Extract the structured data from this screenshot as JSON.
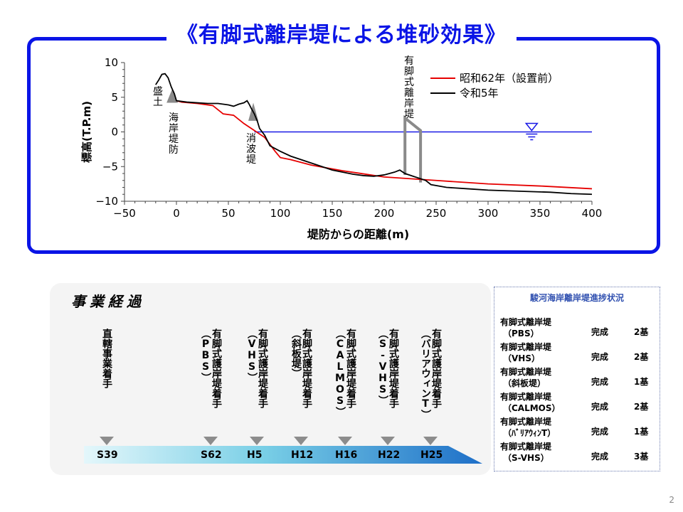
{
  "page_title": "《有脚式離岸堤による堆砂効果》",
  "page_number": "2",
  "chart_data": {
    "type": "line",
    "title": "",
    "xlabel": "堤防からの距離(m)",
    "ylabel": "標高(T.P.m)",
    "xlim": [
      -50,
      400
    ],
    "ylim": [
      -10,
      10
    ],
    "xticks": [
      "−50",
      "0",
      "50",
      "100",
      "150",
      "200",
      "250",
      "300",
      "350",
      "400"
    ],
    "yticks": [
      "10",
      "5",
      "0",
      "−5",
      "−10"
    ],
    "grid": false,
    "legend_position": "top-right",
    "series": [
      {
        "name": "昭和62年（設置前）",
        "color": "#e60000",
        "x": [
          0,
          5,
          20,
          35,
          45,
          55,
          65,
          75,
          85,
          95,
          100,
          110,
          130,
          160,
          200,
          250,
          300,
          350,
          400
        ],
        "y": [
          4.5,
          4.3,
          4.1,
          3.8,
          2.6,
          2.4,
          1.2,
          0.2,
          -0.8,
          -2.8,
          -3.7,
          -4.0,
          -4.8,
          -5.6,
          -6.5,
          -7.0,
          -7.5,
          -7.8,
          -8.2
        ]
      },
      {
        "name": "令和5年",
        "color": "#000000",
        "x": [
          -20,
          -17,
          -14,
          -11,
          -8,
          -5,
          -2,
          0,
          10,
          20,
          30,
          40,
          50,
          55,
          60,
          65,
          68,
          70,
          72,
          75,
          78,
          80,
          85,
          90,
          100,
          110,
          130,
          150,
          170,
          180,
          190,
          200,
          210,
          215,
          220,
          240,
          245,
          260,
          280,
          300,
          320,
          340,
          360,
          380,
          400
        ],
        "y": [
          6.8,
          7.5,
          8.3,
          8.4,
          7.8,
          6.5,
          5.5,
          4.5,
          4.3,
          4.2,
          4.1,
          4.1,
          3.9,
          3.7,
          4.0,
          4.2,
          4.5,
          4.0,
          3.4,
          2.6,
          1.5,
          0.5,
          -0.5,
          -2.0,
          -2.8,
          -3.5,
          -4.5,
          -5.5,
          -6.1,
          -6.3,
          -6.4,
          -6.2,
          -5.8,
          -5.5,
          -6.0,
          -7.0,
          -7.6,
          -8.0,
          -8.2,
          -8.4,
          -8.5,
          -8.6,
          -8.7,
          -8.9,
          -9.0
        ]
      }
    ],
    "annotations": [
      {
        "text": "盛土",
        "x": -17,
        "y": 5.2
      },
      {
        "text": "海岸堤防",
        "x": 0,
        "y": 3.0
      },
      {
        "text": "消波堤",
        "x": 75,
        "y": 0.2
      },
      {
        "text": "有脚式離岸堤",
        "x": 228,
        "y": 10.8
      }
    ],
    "water_level": 0,
    "water_color": "#1a1ae6"
  },
  "history": {
    "title": "事業経過",
    "events": [
      {
        "text": "直轄事業着手",
        "era": "S39"
      },
      {
        "text": "有脚式護岸堤着手\n（PBS）",
        "era": "S62"
      },
      {
        "text": "有脚式護岸堤着手\n（VHS）",
        "era": "H5"
      },
      {
        "text": "有脚式護岸堤着手\n（斜板堤）",
        "era": "H12"
      },
      {
        "text": "有脚式護岸堤着手\n（CALMOS）",
        "era": "H16"
      },
      {
        "text": "有脚式護岸堤着手\n（S-VHS）",
        "era": "H22"
      },
      {
        "text": "有脚式護岸堤着手\n（バリアウィンT）",
        "era": "H25"
      }
    ]
  },
  "status": {
    "title": "駿河海岸離岸堤進捗状況",
    "rows": [
      {
        "name": "有脚式離岸堤",
        "type": "（PBS）",
        "state": "完成",
        "count": "2基"
      },
      {
        "name": "有脚式離岸堤",
        "type": "（VHS）",
        "state": "完成",
        "count": "2基"
      },
      {
        "name": "有脚式離岸堤",
        "type": "（斜板堤）",
        "state": "完成",
        "count": "1基"
      },
      {
        "name": "有脚式離岸堤",
        "type": "（CALMOS）",
        "state": "完成",
        "count": "2基"
      },
      {
        "name": "有脚式離岸堤",
        "type": "（ﾊﾞﾘｱｳｨﾝT）",
        "state": "完成",
        "count": "1基"
      },
      {
        "name": "有脚式離岸堤",
        "type": "（S-VHS）",
        "state": "完成",
        "count": "3基"
      }
    ]
  }
}
